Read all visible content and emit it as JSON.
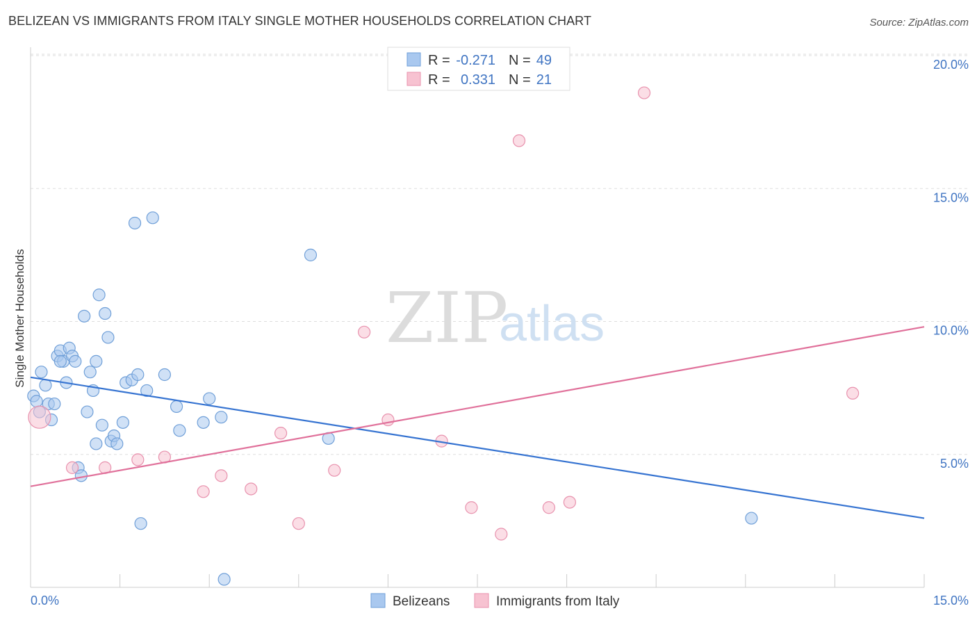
{
  "title": "BELIZEAN VS IMMIGRANTS FROM ITALY SINGLE MOTHER HOUSEHOLDS CORRELATION CHART",
  "source": "Source: ZipAtlas.com",
  "watermark": {
    "zip": "ZIP",
    "atlas": "atlas"
  },
  "colors": {
    "belizean_fill": "#a9c8ef",
    "belizean_stroke": "#6f9fd8",
    "belizean_line": "#3573d1",
    "italy_fill": "#f7c2d1",
    "italy_stroke": "#e891ad",
    "italy_line": "#e0709a",
    "grid": "#dddddd",
    "axis_label": "#3f74c2"
  },
  "legend": {
    "rows": [
      {
        "r_label": "R =",
        "r_value": "-0.271",
        "n_label": "N =",
        "n_value": "49"
      },
      {
        "r_label": "R =",
        "r_value": "0.331",
        "n_label": "N =",
        "n_value": "21"
      }
    ]
  },
  "bottom_legend": [
    "Belizeans",
    "Immigrants from Italy"
  ],
  "chart_data": {
    "type": "scatter",
    "title": "BELIZEAN VS IMMIGRANTS FROM ITALY SINGLE MOTHER HOUSEHOLDS CORRELATION CHART",
    "xlabel": "",
    "ylabel": "Single Mother Households",
    "xlim": [
      0,
      15
    ],
    "ylim": [
      0,
      20.5
    ],
    "x_tick_labels": [
      "0.0%",
      "15.0%"
    ],
    "y_ticks": [
      5,
      10,
      15,
      20
    ],
    "y_tick_labels": [
      "5.0%",
      "10.0%",
      "15.0%",
      "20.0%"
    ],
    "grid": "horizontal dashed",
    "legend_placement": "top-center",
    "series": [
      {
        "name": "Belizeans",
        "r": -0.271,
        "n": 49,
        "trend": [
          [
            0,
            7.9
          ],
          [
            15,
            2.6
          ]
        ],
        "points": [
          [
            0.05,
            7.2
          ],
          [
            0.1,
            7.0
          ],
          [
            0.15,
            6.6
          ],
          [
            0.18,
            8.1
          ],
          [
            0.25,
            7.6
          ],
          [
            0.3,
            6.9
          ],
          [
            0.35,
            6.3
          ],
          [
            0.4,
            6.9
          ],
          [
            0.45,
            8.7
          ],
          [
            0.5,
            8.9
          ],
          [
            0.55,
            8.5
          ],
          [
            0.6,
            7.7
          ],
          [
            0.65,
            9.0
          ],
          [
            0.7,
            8.7
          ],
          [
            0.75,
            8.5
          ],
          [
            0.8,
            4.5
          ],
          [
            0.85,
            4.2
          ],
          [
            0.9,
            10.2
          ],
          [
            0.95,
            6.6
          ],
          [
            1.0,
            8.1
          ],
          [
            1.05,
            7.4
          ],
          [
            1.1,
            8.5
          ],
          [
            1.15,
            11.0
          ],
          [
            1.2,
            6.1
          ],
          [
            1.25,
            10.3
          ],
          [
            1.3,
            9.4
          ],
          [
            1.35,
            5.5
          ],
          [
            1.4,
            5.7
          ],
          [
            1.45,
            5.4
          ],
          [
            1.55,
            6.2
          ],
          [
            1.6,
            7.7
          ],
          [
            1.7,
            7.8
          ],
          [
            1.75,
            13.7
          ],
          [
            1.8,
            8.0
          ],
          [
            1.85,
            2.4
          ],
          [
            1.95,
            7.4
          ],
          [
            2.05,
            13.9
          ],
          [
            2.25,
            8.0
          ],
          [
            2.45,
            6.8
          ],
          [
            2.5,
            5.9
          ],
          [
            2.9,
            6.2
          ],
          [
            3.0,
            7.1
          ],
          [
            3.2,
            6.4
          ],
          [
            3.25,
            0.3
          ],
          [
            4.7,
            12.5
          ],
          [
            5.0,
            5.6
          ],
          [
            12.1,
            2.6
          ],
          [
            0.5,
            8.5
          ],
          [
            1.1,
            5.4
          ]
        ]
      },
      {
        "name": "Immigrants from Italy",
        "r": 0.331,
        "n": 21,
        "trend": [
          [
            0,
            3.8
          ],
          [
            15,
            9.8
          ]
        ],
        "points": [
          [
            0.15,
            6.4
          ],
          [
            0.7,
            4.5
          ],
          [
            1.25,
            4.5
          ],
          [
            1.8,
            4.8
          ],
          [
            2.25,
            4.9
          ],
          [
            2.9,
            3.6
          ],
          [
            3.2,
            4.2
          ],
          [
            3.7,
            3.7
          ],
          [
            4.2,
            5.8
          ],
          [
            4.5,
            2.4
          ],
          [
            5.1,
            4.4
          ],
          [
            5.6,
            9.6
          ],
          [
            6.0,
            6.3
          ],
          [
            6.9,
            5.5
          ],
          [
            7.4,
            3.0
          ],
          [
            7.9,
            2.0
          ],
          [
            8.2,
            16.8
          ],
          [
            8.7,
            3.0
          ],
          [
            9.05,
            3.2
          ],
          [
            10.3,
            18.6
          ],
          [
            13.8,
            7.3
          ]
        ]
      }
    ]
  }
}
